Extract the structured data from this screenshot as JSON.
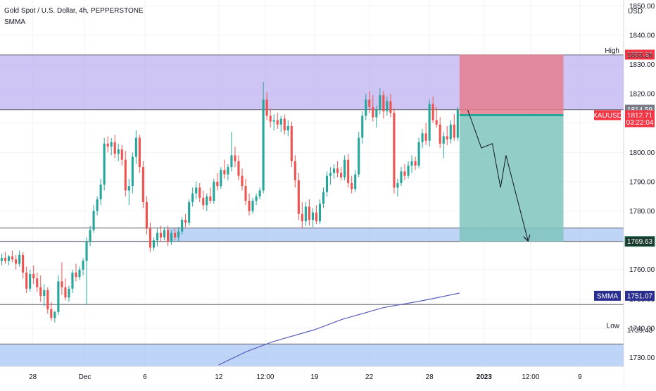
{
  "header": {
    "symbol_line": "Gold Spot / U.S. Dollar, 4h, PEPPERSTONE",
    "indicator": "SMMA"
  },
  "chart_data": {
    "type": "candlestick",
    "currency": "USD",
    "ylim": [
      1727,
      1852
    ],
    "y_ticks": [
      "1730.00",
      "1740.00",
      "1750.00",
      "1760.00",
      "1770.00",
      "1780.00",
      "1790.00",
      "1800.00",
      "1810.00",
      "1820.00",
      "1830.00",
      "1840.00",
      "1850.00"
    ],
    "x_ticks": [
      {
        "label": "28",
        "x": 12
      },
      {
        "label": "Dec",
        "x": 31
      },
      {
        "label": "6",
        "x": 53
      },
      {
        "label": "12",
        "x": 80
      },
      {
        "label": "12:00",
        "x": 97
      },
      {
        "label": "19",
        "x": 115
      },
      {
        "label": "22",
        "x": 135
      },
      {
        "label": "28",
        "x": 157
      },
      {
        "label": "2023",
        "x": 177
      },
      {
        "label": "12:00",
        "x": 194
      },
      {
        "label": "9",
        "x": 212
      }
    ],
    "x_range": [
      0,
      228
    ],
    "zones": [
      {
        "name": "resistance",
        "from": 1814.59,
        "to": 1833.26,
        "x_start": 0,
        "color": "#b3a6ef"
      },
      {
        "name": "support",
        "from": 1769.63,
        "to": 1774.2,
        "x_start": 61,
        "color": "#9bbff5"
      },
      {
        "name": "low-zone",
        "from": 1727,
        "to": 1734.6,
        "x_start": 0,
        "color": "#9bbff5"
      }
    ],
    "horizontal_lines": [
      {
        "value": 1833.26,
        "label": "High"
      },
      {
        "value": 1814.59,
        "label": ""
      },
      {
        "value": 1774.2,
        "label": ""
      },
      {
        "value": 1769.63,
        "label": ""
      },
      {
        "value": 1748.1,
        "label": ""
      },
      {
        "value": 1734.6,
        "label": ""
      },
      {
        "value": 1739.43,
        "label": "Low",
        "hidden_line": true
      }
    ],
    "position": {
      "type": "short",
      "x_start": 168,
      "x_end": 206,
      "entry": 1812.71,
      "stop": 1833.36,
      "target": 1769.63,
      "stop_color": "#e57d8e",
      "target_color": "#7fc4bd"
    },
    "projection_path": [
      {
        "x": 171,
        "y": 1814.5
      },
      {
        "x": 176,
        "y": 1801.5
      },
      {
        "x": 180,
        "y": 1803.0
      },
      {
        "x": 183,
        "y": 1788.0
      },
      {
        "x": 185,
        "y": 1799.0
      },
      {
        "x": 193,
        "y": 1770.0
      }
    ],
    "price_labels": [
      {
        "text": "1833.36",
        "value": 1833.36,
        "bg": "#f23645",
        "color": "#ffffff"
      },
      {
        "text": "1833.26",
        "value": 1833.26,
        "bg": "",
        "color": "#131722"
      },
      {
        "text": "1814.59",
        "value": 1814.59,
        "bg": "#787b86",
        "color": "#ffffff"
      },
      {
        "text": "XAUUSD",
        "value": 1812.71,
        "bg": "#f23645",
        "color": "#ffffff",
        "side": "left"
      },
      {
        "text": "1812.71",
        "value": 1812.71,
        "bg": "#f23645",
        "color": "#ffffff"
      },
      {
        "text": "03:22:04",
        "value": 1810.3,
        "bg": "#f23645",
        "color": "#ffffff"
      },
      {
        "text": "1769.63",
        "value": 1769.63,
        "bg": "#1b3a2e",
        "color": "#ffffff",
        "border": "#2d7d5e"
      },
      {
        "text": "SMMA",
        "value": 1751.07,
        "bg": "#2a2e8f",
        "color": "#ffffff",
        "side": "left"
      },
      {
        "text": "1751.07",
        "value": 1751.07,
        "bg": "#2a2e8f",
        "color": "#ffffff"
      },
      {
        "text": "1739.43",
        "value": 1739.43,
        "bg": "",
        "color": "#131722"
      }
    ],
    "smma": {
      "color": "#5b5fb8",
      "points": [
        [
          80,
          1727.5
        ],
        [
          90,
          1732.0
        ],
        [
          100,
          1735.5
        ],
        [
          115,
          1739.5
        ],
        [
          125,
          1743.0
        ],
        [
          140,
          1747.0
        ],
        [
          155,
          1749.5
        ],
        [
          168,
          1752.0
        ]
      ]
    },
    "candles": [
      [
        1763.0,
        1765.5,
        1761.5,
        1764.0
      ],
      [
        1764.0,
        1766.0,
        1762.0,
        1763.0
      ],
      [
        1763.0,
        1765.0,
        1761.5,
        1764.5
      ],
      [
        1764.5,
        1766.5,
        1762.5,
        1763.5
      ],
      [
        1763.5,
        1765.0,
        1760.0,
        1762.0
      ],
      [
        1762.0,
        1766.5,
        1761.0,
        1765.0
      ],
      [
        1765.0,
        1766.0,
        1757.0,
        1759.0
      ],
      [
        1759.0,
        1761.0,
        1752.0,
        1753.5
      ],
      [
        1753.5,
        1760.0,
        1752.5,
        1758.5
      ],
      [
        1758.5,
        1761.5,
        1755.0,
        1757.0
      ],
      [
        1757.0,
        1759.0,
        1752.5,
        1754.0
      ],
      [
        1754.0,
        1758.0,
        1749.0,
        1751.0
      ],
      [
        1751.0,
        1755.0,
        1747.5,
        1753.0
      ],
      [
        1753.0,
        1754.0,
        1745.0,
        1746.5
      ],
      [
        1746.5,
        1749.0,
        1742.5,
        1743.5
      ],
      [
        1743.5,
        1746.0,
        1742.0,
        1745.5
      ],
      [
        1745.5,
        1758.0,
        1744.5,
        1756.0
      ],
      [
        1756.0,
        1762.5,
        1751.5,
        1754.0
      ],
      [
        1754.0,
        1757.0,
        1749.5,
        1750.5
      ],
      [
        1750.5,
        1754.5,
        1749.0,
        1753.5
      ],
      [
        1753.5,
        1760.0,
        1752.0,
        1759.0
      ],
      [
        1759.0,
        1762.0,
        1756.0,
        1757.5
      ],
      [
        1757.5,
        1761.0,
        1756.5,
        1760.0
      ],
      [
        1760.0,
        1764.0,
        1758.0,
        1763.0
      ],
      [
        1763.0,
        1771.0,
        1748.0,
        1769.5
      ],
      [
        1769.5,
        1775.0,
        1768.0,
        1773.5
      ],
      [
        1773.5,
        1782.0,
        1772.5,
        1780.0
      ],
      [
        1780.0,
        1785.0,
        1778.5,
        1784.0
      ],
      [
        1784.0,
        1791.0,
        1782.0,
        1789.0
      ],
      [
        1789.0,
        1805.0,
        1787.0,
        1803.0
      ],
      [
        1803.0,
        1805.5,
        1800.0,
        1802.0
      ],
      [
        1802.0,
        1805.0,
        1799.0,
        1803.5
      ],
      [
        1803.5,
        1806.0,
        1798.0,
        1799.5
      ],
      [
        1799.5,
        1803.0,
        1797.0,
        1801.0
      ],
      [
        1801.0,
        1802.5,
        1795.5,
        1797.5
      ],
      [
        1797.5,
        1800.5,
        1785.0,
        1787.0
      ],
      [
        1787.0,
        1791.0,
        1782.0,
        1788.5
      ],
      [
        1788.5,
        1800.0,
        1786.0,
        1798.5
      ],
      [
        1798.5,
        1807.5,
        1796.0,
        1805.0
      ],
      [
        1805.0,
        1806.0,
        1793.0,
        1795.0
      ],
      [
        1795.0,
        1797.0,
        1781.0,
        1783.0
      ],
      [
        1783.0,
        1785.0,
        1772.0,
        1774.0
      ],
      [
        1774.0,
        1776.0,
        1766.0,
        1767.5
      ],
      [
        1767.5,
        1771.0,
        1766.5,
        1770.0
      ],
      [
        1770.0,
        1774.0,
        1768.0,
        1772.5
      ],
      [
        1772.5,
        1775.0,
        1769.5,
        1771.0
      ],
      [
        1771.0,
        1774.5,
        1770.0,
        1773.5
      ],
      [
        1773.5,
        1775.0,
        1768.0,
        1769.5
      ],
      [
        1769.5,
        1773.5,
        1768.5,
        1772.5
      ],
      [
        1772.5,
        1774.0,
        1770.0,
        1771.0
      ],
      [
        1771.0,
        1774.5,
        1769.5,
        1773.0
      ],
      [
        1773.0,
        1778.0,
        1772.0,
        1777.0
      ],
      [
        1777.0,
        1779.0,
        1774.5,
        1776.0
      ],
      [
        1776.0,
        1784.0,
        1775.0,
        1783.0
      ],
      [
        1783.0,
        1788.0,
        1781.5,
        1786.0
      ],
      [
        1786.0,
        1790.0,
        1784.0,
        1788.0
      ],
      [
        1788.0,
        1789.5,
        1783.0,
        1784.5
      ],
      [
        1784.5,
        1787.0,
        1780.5,
        1782.0
      ],
      [
        1782.0,
        1786.0,
        1780.0,
        1785.0
      ],
      [
        1785.0,
        1788.0,
        1782.5,
        1783.5
      ],
      [
        1783.5,
        1791.0,
        1782.5,
        1790.0
      ],
      [
        1790.0,
        1793.0,
        1787.0,
        1788.5
      ],
      [
        1788.5,
        1795.0,
        1787.5,
        1794.0
      ],
      [
        1794.0,
        1797.5,
        1791.0,
        1792.5
      ],
      [
        1792.5,
        1796.0,
        1790.5,
        1795.0
      ],
      [
        1795.0,
        1807.0,
        1793.5,
        1799.0
      ],
      [
        1799.0,
        1802.0,
        1795.0,
        1797.0
      ],
      [
        1797.0,
        1799.0,
        1790.5,
        1792.0
      ],
      [
        1792.0,
        1794.5,
        1787.0,
        1788.5
      ],
      [
        1788.5,
        1791.0,
        1782.0,
        1783.5
      ],
      [
        1783.5,
        1786.0,
        1778.5,
        1780.0
      ],
      [
        1780.0,
        1784.5,
        1779.0,
        1783.5
      ],
      [
        1783.5,
        1786.0,
        1782.0,
        1785.0
      ],
      [
        1785.0,
        1788.0,
        1784.0,
        1787.0
      ],
      [
        1787.0,
        1824.0,
        1786.0,
        1818.0
      ],
      [
        1818.0,
        1820.5,
        1811.0,
        1812.5
      ],
      [
        1812.5,
        1815.0,
        1808.5,
        1810.5
      ],
      [
        1810.5,
        1813.0,
        1807.5,
        1811.0
      ],
      [
        1811.0,
        1813.5,
        1808.0,
        1809.5
      ],
      [
        1809.5,
        1812.5,
        1807.0,
        1811.5
      ],
      [
        1811.5,
        1813.0,
        1806.0,
        1807.5
      ],
      [
        1807.5,
        1811.0,
        1805.5,
        1809.0
      ],
      [
        1809.0,
        1810.5,
        1795.0,
        1797.0
      ],
      [
        1797.0,
        1799.0,
        1788.0,
        1790.5
      ],
      [
        1790.5,
        1793.0,
        1777.0,
        1779.0
      ],
      [
        1779.0,
        1783.0,
        1774.0,
        1776.5
      ],
      [
        1776.5,
        1783.0,
        1775.0,
        1781.5
      ],
      [
        1781.5,
        1784.0,
        1775.0,
        1777.0
      ],
      [
        1777.0,
        1781.0,
        1774.5,
        1779.5
      ],
      [
        1779.5,
        1782.0,
        1775.5,
        1776.5
      ],
      [
        1776.5,
        1784.0,
        1775.5,
        1782.5
      ],
      [
        1782.5,
        1788.0,
        1781.0,
        1786.5
      ],
      [
        1786.5,
        1793.5,
        1785.0,
        1792.0
      ],
      [
        1792.0,
        1795.0,
        1789.0,
        1793.0
      ],
      [
        1793.0,
        1796.0,
        1791.0,
        1794.5
      ],
      [
        1794.5,
        1797.0,
        1791.5,
        1793.0
      ],
      [
        1793.0,
        1795.0,
        1790.5,
        1791.5
      ],
      [
        1791.5,
        1799.0,
        1790.5,
        1797.5
      ],
      [
        1797.5,
        1799.5,
        1788.0,
        1789.5
      ],
      [
        1789.5,
        1792.0,
        1786.0,
        1787.5
      ],
      [
        1787.5,
        1794.0,
        1786.5,
        1792.5
      ],
      [
        1792.5,
        1807.0,
        1791.5,
        1805.0
      ],
      [
        1805.0,
        1814.0,
        1803.0,
        1812.5
      ],
      [
        1812.5,
        1820.0,
        1811.0,
        1818.0
      ],
      [
        1818.0,
        1821.0,
        1813.5,
        1815.5
      ],
      [
        1815.5,
        1819.5,
        1810.5,
        1812.0
      ],
      [
        1812.0,
        1816.0,
        1808.5,
        1814.5
      ],
      [
        1814.5,
        1822.0,
        1813.0,
        1819.5
      ],
      [
        1819.5,
        1821.0,
        1811.5,
        1814.0
      ],
      [
        1814.0,
        1819.0,
        1812.5,
        1817.5
      ],
      [
        1817.5,
        1820.0,
        1812.0,
        1813.5
      ],
      [
        1813.5,
        1815.0,
        1786.0,
        1788.0
      ],
      [
        1788.0,
        1791.0,
        1785.0,
        1789.5
      ],
      [
        1789.5,
        1795.0,
        1788.5,
        1793.5
      ],
      [
        1793.5,
        1796.0,
        1790.5,
        1792.0
      ],
      [
        1792.0,
        1797.0,
        1791.0,
        1795.5
      ],
      [
        1795.5,
        1799.0,
        1793.0,
        1797.0
      ],
      [
        1797.0,
        1798.5,
        1794.0,
        1795.5
      ],
      [
        1795.5,
        1805.0,
        1794.5,
        1803.5
      ],
      [
        1803.5,
        1808.0,
        1801.5,
        1806.5
      ],
      [
        1806.5,
        1810.0,
        1802.5,
        1804.0
      ],
      [
        1804.0,
        1818.0,
        1802.0,
        1816.5
      ],
      [
        1816.5,
        1819.0,
        1810.0,
        1811.0
      ],
      [
        1811.0,
        1815.5,
        1808.5,
        1809.5
      ],
      [
        1809.5,
        1812.0,
        1801.5,
        1803.0
      ],
      [
        1803.0,
        1807.0,
        1798.0,
        1805.5
      ],
      [
        1805.5,
        1809.0,
        1802.5,
        1804.5
      ],
      [
        1804.5,
        1811.0,
        1803.0,
        1809.5
      ],
      [
        1809.5,
        1813.0,
        1804.0,
        1805.0
      ],
      [
        1805.0,
        1815.5,
        1804.0,
        1814.5
      ]
    ]
  }
}
